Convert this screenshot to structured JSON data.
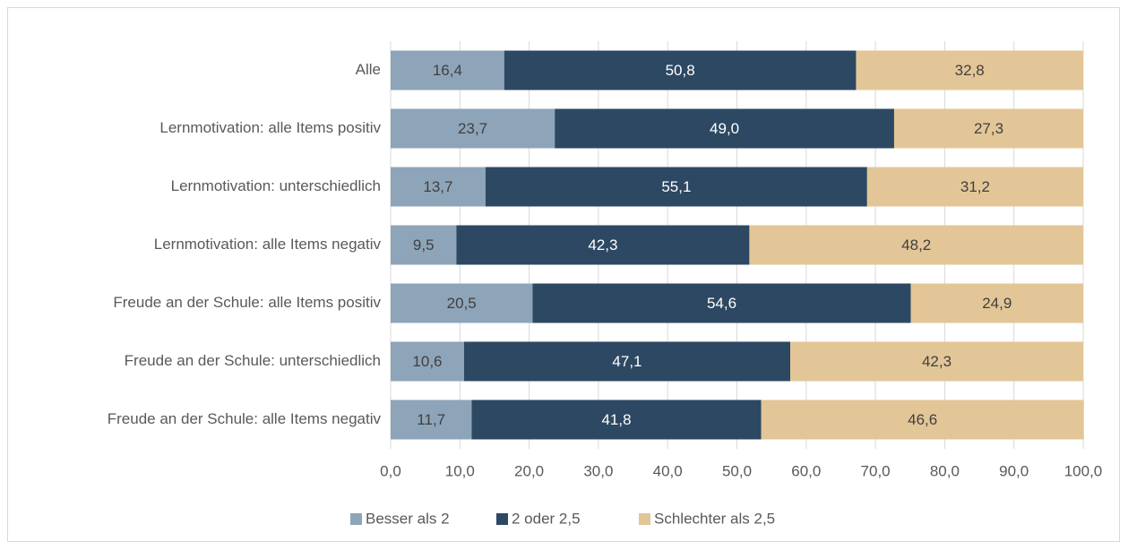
{
  "chart_data": {
    "type": "stacked_bar_horizontal",
    "categories": [
      "Alle",
      "Lernmotivation: alle Items positiv",
      "Lernmotivation: unterschiedlich",
      "Lernmotivation: alle Items negativ",
      "Freude an der Schule: alle Items positiv",
      "Freude an der Schule: unterschiedlich",
      "Freude an der Schule: alle Items negativ"
    ],
    "series": [
      {
        "name": "Besser als 2",
        "color": "#8ea4b9",
        "values": [
          16.4,
          23.7,
          13.7,
          9.5,
          20.5,
          10.6,
          11.7
        ],
        "value_labels": [
          "16,4",
          "23,7",
          "13,7",
          "9,5",
          "20,5",
          "10,6",
          "11,7"
        ]
      },
      {
        "name": "2 oder 2,5",
        "color": "#2d4862",
        "values": [
          50.8,
          49.0,
          55.1,
          42.3,
          54.6,
          47.1,
          41.8
        ],
        "value_labels": [
          "50,8",
          "49,0",
          "55,1",
          "42,3",
          "54,6",
          "47,1",
          "41,8"
        ]
      },
      {
        "name": "Schlechter als 2,5",
        "color": "#e3c697",
        "values": [
          32.8,
          27.3,
          31.2,
          48.2,
          24.9,
          42.3,
          46.6
        ],
        "value_labels": [
          "32,8",
          "27,3",
          "31,2",
          "48,2",
          "24,9",
          "42,3",
          "46,6"
        ]
      }
    ],
    "xlim": [
      0,
      100
    ],
    "xticks": [
      {
        "value": 0,
        "label": "0,0"
      },
      {
        "value": 10,
        "label": "10,0"
      },
      {
        "value": 20,
        "label": "20,0"
      },
      {
        "value": 30,
        "label": "30,0"
      },
      {
        "value": 40,
        "label": "40,0"
      },
      {
        "value": 50,
        "label": "50,0"
      },
      {
        "value": 60,
        "label": "60,0"
      },
      {
        "value": 70,
        "label": "70,0"
      },
      {
        "value": 80,
        "label": "80,0"
      },
      {
        "value": 90,
        "label": "90,0"
      },
      {
        "value": 100,
        "label": "100,0"
      }
    ],
    "grid": true,
    "legend": "bottom"
  }
}
